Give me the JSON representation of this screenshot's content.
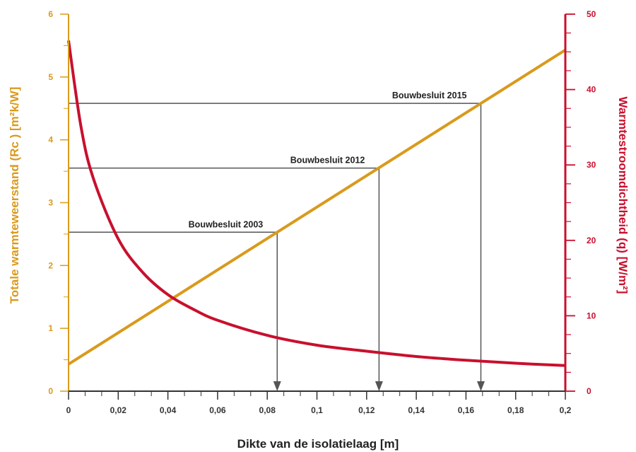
{
  "colors": {
    "left_axis": "#d99a1c",
    "right_axis": "#c8102e",
    "x_axis": "#333333",
    "guide": "#555555"
  },
  "chart_data": {
    "type": "line",
    "xlabel": "Dikte van de isolatielaag [m]",
    "ylabel_left": "Totale warmteweerstand (Rc ) [m²k/W]",
    "ylabel_right": "Warmtestroomdichtheid (q) [W/m²]",
    "xlim": [
      0,
      0.2
    ],
    "ylim_left": [
      0,
      6
    ],
    "ylim_right": [
      0,
      50
    ],
    "x_ticks": [
      0,
      0.02,
      0.04,
      0.06,
      0.08,
      0.1,
      0.12,
      0.14,
      0.16,
      0.18,
      0.2
    ],
    "x_tick_labels": [
      "0",
      "0,02",
      "0,04",
      "0,06",
      "0,08",
      "0,1",
      "0,12",
      "0,14",
      "0,16",
      "0,18",
      "0,2"
    ],
    "y_left_ticks": [
      0,
      1,
      2,
      3,
      4,
      5,
      6
    ],
    "y_left_tick_labels": [
      "0",
      "1",
      "2",
      "3",
      "4",
      "5",
      "6"
    ],
    "y_right_ticks": [
      0,
      10,
      20,
      30,
      40,
      50
    ],
    "y_right_tick_labels": [
      "0",
      "10",
      "20",
      "30",
      "40",
      "50"
    ],
    "series": [
      {
        "axis": "left",
        "color": "#d99a1c",
        "x": [
          0,
          0.2
        ],
        "y": [
          0.43,
          5.43
        ]
      },
      {
        "axis": "right",
        "color": "#c8102e",
        "x": [
          0,
          0.005,
          0.01,
          0.02,
          0.03,
          0.04,
          0.05,
          0.06,
          0.08,
          0.1,
          0.12,
          0.14,
          0.16,
          0.18,
          0.2
        ],
        "y": [
          46.5,
          35.1,
          28.2,
          20.2,
          15.7,
          12.8,
          10.9,
          9.4,
          7.4,
          6.1,
          5.3,
          4.6,
          4.1,
          3.7,
          3.4
        ]
      }
    ],
    "annotations": [
      {
        "text": "Bouwbesluit 2003",
        "x": 0.084,
        "y": 2.53
      },
      {
        "text": "Bouwbesluit 2012",
        "x": 0.125,
        "y": 3.55
      },
      {
        "text": "Bouwbesluit 2015",
        "x": 0.166,
        "y": 4.58
      }
    ]
  }
}
